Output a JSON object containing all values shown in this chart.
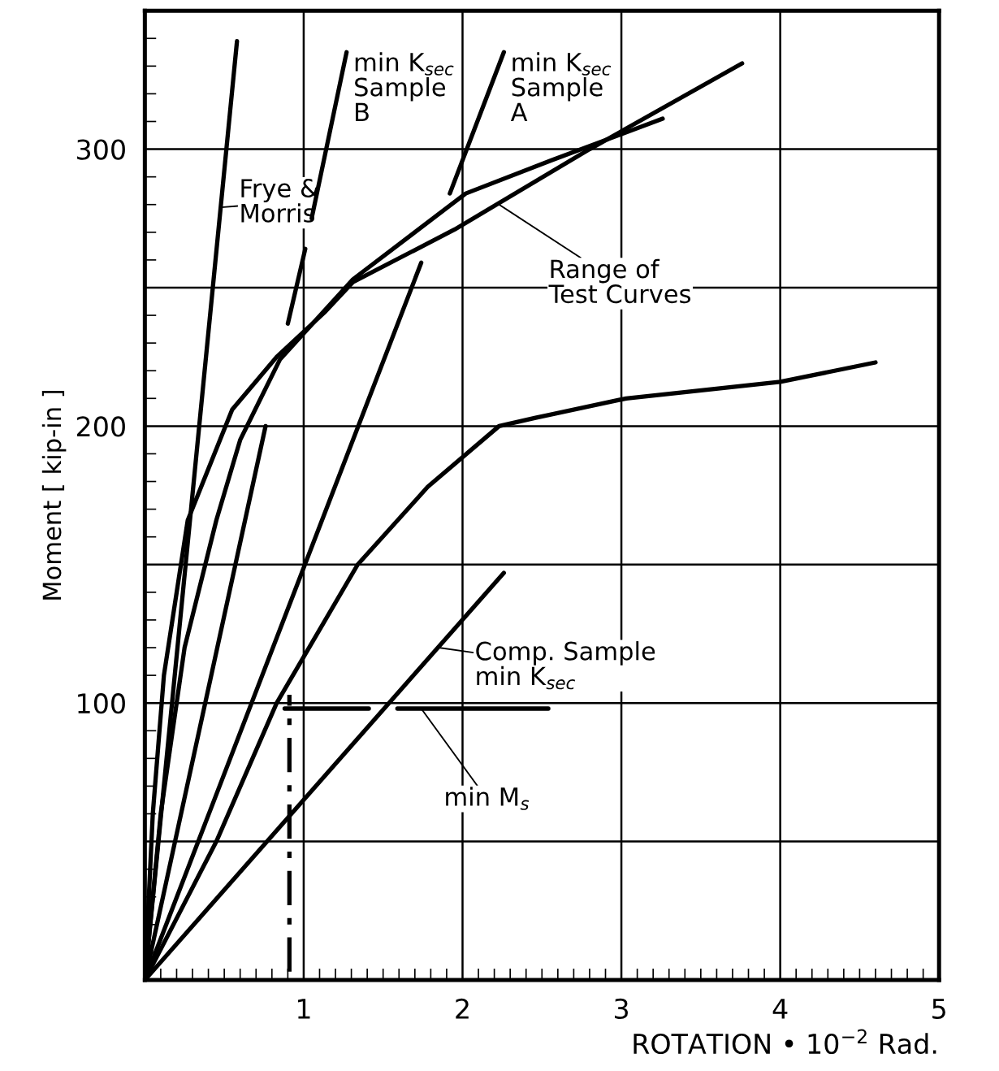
{
  "chart_data": {
    "type": "line",
    "xlabel": "ROTATION • 10$^{−2}$ Rad.",
    "ylabel": "Moment [ kip-in ]",
    "xlim": [
      0,
      5
    ],
    "ylim": [
      0,
      350
    ],
    "xticks": [
      {
        "value": 0,
        "label": null
      },
      1,
      2,
      3,
      4,
      5
    ],
    "yticks": [
      {
        "value": 0,
        "label": null
      },
      {
        "value": 50,
        "label": null
      },
      100,
      {
        "value": 150,
        "label": null
      },
      200,
      {
        "value": 250,
        "label": null
      },
      300,
      {
        "value": 350,
        "label": null
      }
    ],
    "grid": true,
    "marker": "none",
    "line_style": "solid",
    "series": [
      {
        "color": "#000000",
        "x": [
          0,
          0.58
        ],
        "values": [
          0,
          339
        ]
      },
      {
        "color": "#000000",
        "x": [
          0.9,
          1.01,
          1.03,
          1.05,
          1.27
        ],
        "values": [
          237,
          264,
          null,
          275,
          335
        ]
      },
      {
        "color": "#000000",
        "x": [
          1.92,
          2.26
        ],
        "values": [
          284,
          335
        ]
      },
      {
        "color": "#000000",
        "x": [
          0,
          0.76
        ],
        "values": [
          0,
          200
        ]
      },
      {
        "color": "#000000",
        "x": [
          0,
          1.74
        ],
        "values": [
          0,
          259
        ]
      },
      {
        "color": "#000000",
        "x": [
          0,
          0.1,
          0.25,
          0.45,
          0.6,
          0.85,
          1.31,
          2.02,
          2.56,
          3.26
        ],
        "values": [
          0,
          60,
          120,
          166,
          195,
          224,
          253,
          284,
          296,
          311
        ]
      },
      {
        "color": "#000000",
        "x": [
          0,
          0.05,
          0.12,
          0.27,
          0.55,
          0.83,
          1.13,
          1.31,
          1.95,
          2.8,
          3.76
        ],
        "values": [
          0,
          60,
          110,
          166,
          206,
          225,
          241,
          252,
          271,
          300,
          331
        ]
      },
      {
        "color": "#000000",
        "x": [
          0,
          0.45,
          0.83,
          1.34,
          1.78,
          2.23,
          2.46,
          3.03,
          4.0,
          4.6
        ],
        "values": [
          0,
          50,
          100,
          150,
          178,
          200,
          203,
          210,
          216,
          223
        ]
      },
      {
        "color": "#000000",
        "x": [
          0,
          2.26
        ],
        "values": [
          0,
          147
        ]
      },
      {
        "color": "#000000",
        "x": [
          0.88,
          1.41,
          1.5,
          1.59,
          2.54
        ],
        "values": [
          98,
          98,
          null,
          98,
          98
        ]
      },
      {
        "color": "#000000",
        "x": [
          0.91,
          0.91
        ],
        "values": [
          3,
          103
        ],
        "line_style": "dashed"
      }
    ],
    "annotations": [
      {
        "text": "Frye &\nMorris",
        "x": 0.48,
        "y": 279
      },
      {
        "text": "min K$_{sec}$\nSample\nB",
        "x": 1.27,
        "y": 335
      },
      {
        "text": "min K$_{sec}$\nSample\nA",
        "x": 2.26,
        "y": 335
      },
      {
        "text": "Range of\nTest Curves",
        "x": 2.23,
        "y": 280
      },
      {
        "text": "Comp. Sample\nmin K$_{sec}$",
        "x": 1.85,
        "y": 120
      },
      {
        "text": "min M$_{s}$",
        "x": 1.74,
        "y": 98
      }
    ]
  }
}
